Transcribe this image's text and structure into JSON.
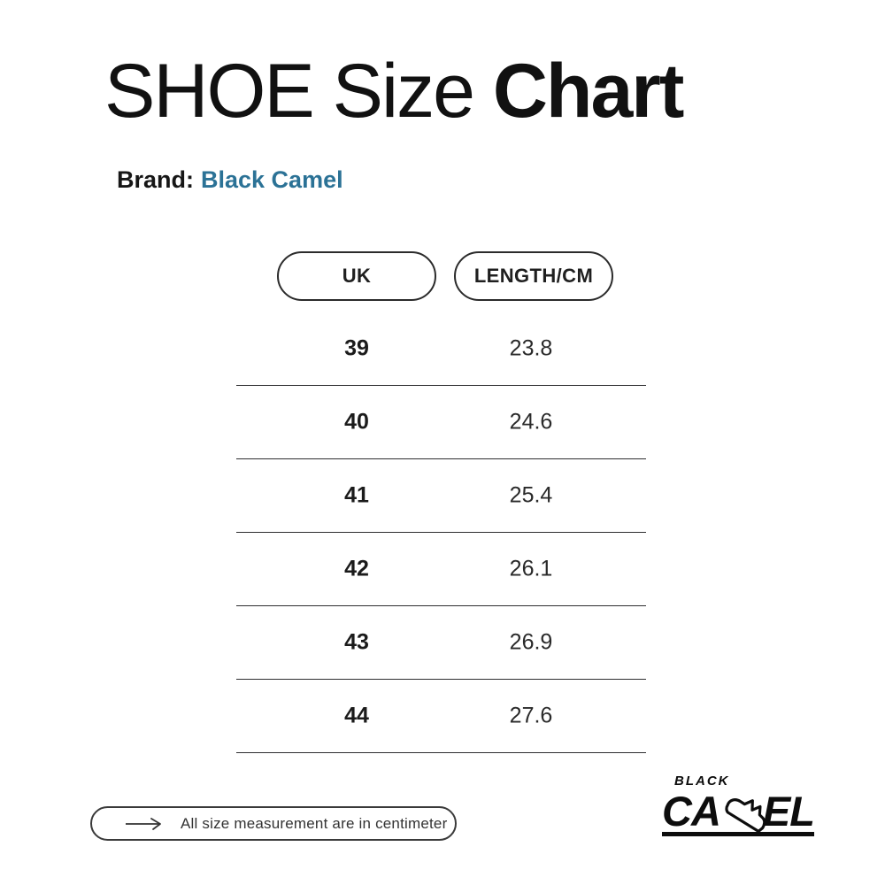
{
  "page": {
    "background": "#ffffff",
    "text_color": "#111111"
  },
  "title": {
    "regular": "SHOE Size ",
    "bold": "Chart"
  },
  "brand": {
    "label": "Brand:",
    "value": "Black Camel",
    "value_color": "#2b7296"
  },
  "table": {
    "headers": [
      {
        "label": "UK"
      },
      {
        "label": "LENGTH/CM"
      }
    ],
    "rows": [
      {
        "uk": "39",
        "length_cm": "23.8"
      },
      {
        "uk": "40",
        "length_cm": "24.6"
      },
      {
        "uk": "41",
        "length_cm": "25.4"
      },
      {
        "uk": "42",
        "length_cm": "26.1"
      },
      {
        "uk": "43",
        "length_cm": "26.9"
      },
      {
        "uk": "44",
        "length_cm": "27.6"
      }
    ]
  },
  "footer": {
    "arrow_icon": "long-right-arrow",
    "note": "All size measurement are in centimeter"
  },
  "logo": {
    "top": "BLACK",
    "left": "CA",
    "right": "EL",
    "shoe_icon": "sneaker-outline"
  },
  "chart_data": {
    "type": "table",
    "title": "SHOE Size Chart",
    "brand": "Black Camel",
    "columns": [
      "UK",
      "LENGTH/CM"
    ],
    "rows": [
      [
        39,
        23.8
      ],
      [
        40,
        24.6
      ],
      [
        41,
        25.4
      ],
      [
        42,
        26.1
      ],
      [
        43,
        26.9
      ],
      [
        44,
        27.6
      ]
    ],
    "unit_note": "All size measurement are in centimeter"
  }
}
